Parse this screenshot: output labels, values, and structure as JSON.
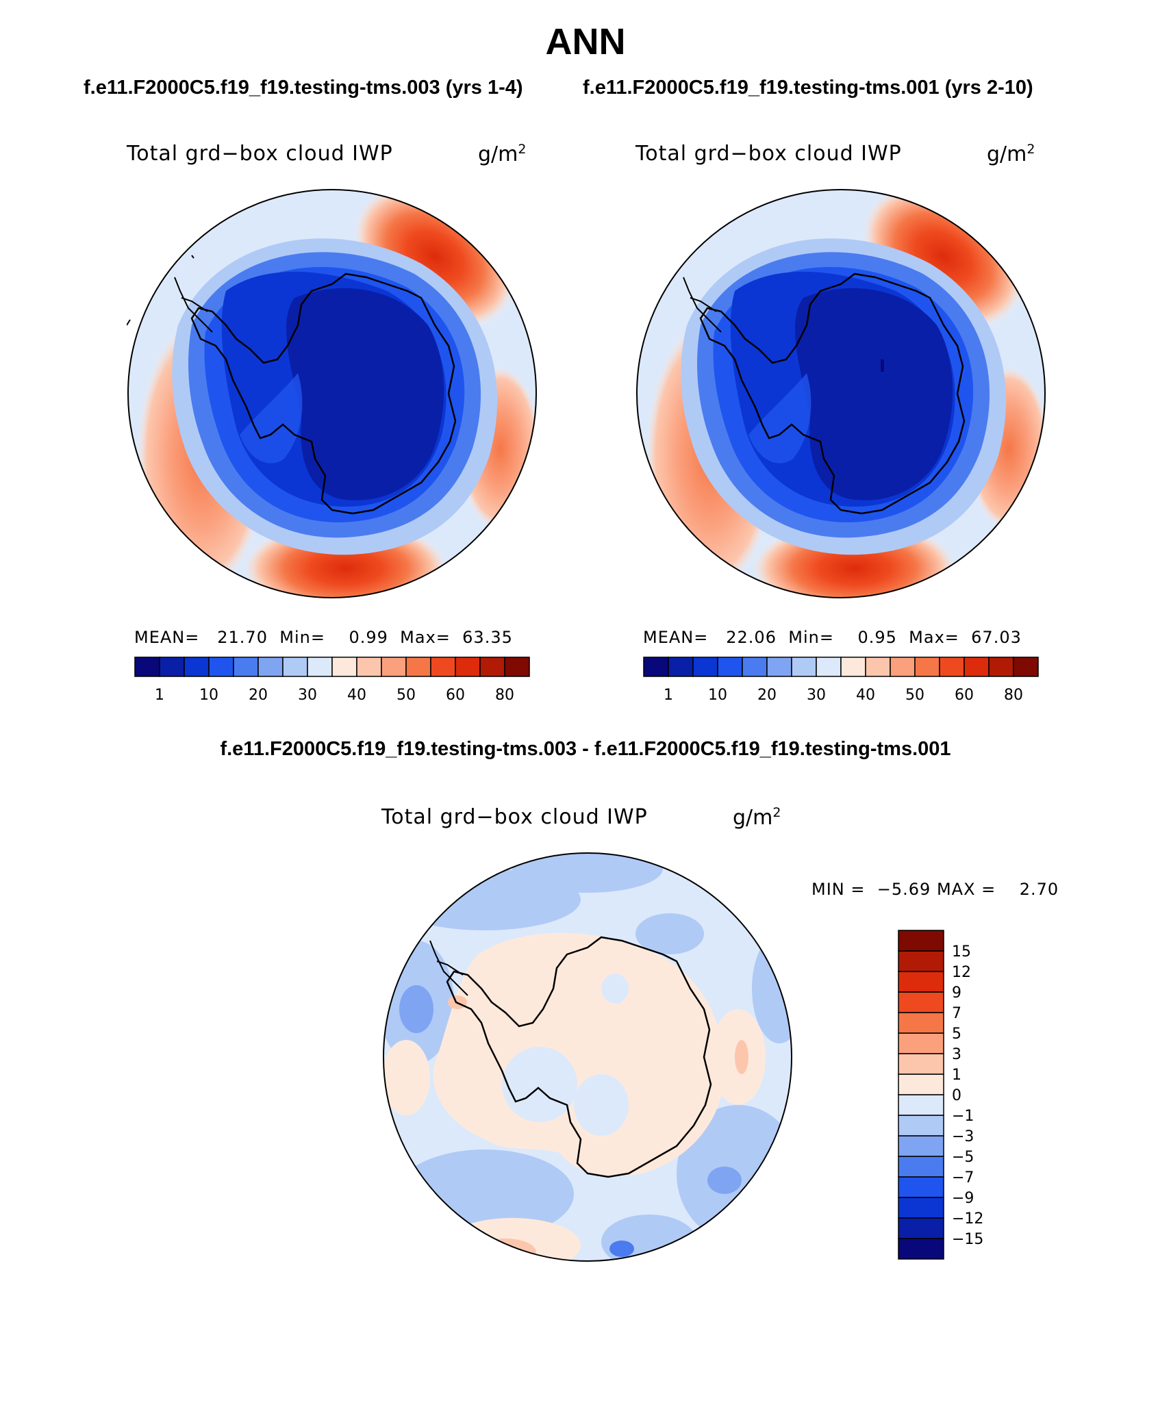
{
  "header": {
    "title": "ANN",
    "case_left": "f.e11.F2000C5.f19_f19.testing-tms.003 (yrs 1-4)",
    "case_right": "f.e11.F2000C5.f19_f19.testing-tms.001 (yrs 2-10)",
    "diff_title": "f.e11.F2000C5.f19_f19.testing-tms.003 - f.e11.F2000C5.f19_f19.testing-tms.001"
  },
  "panels": [
    {
      "variable": "Total grd−box cloud IWP",
      "units_base": "g/m",
      "units_exp": "2",
      "stats": {
        "mean_label": "MEAN=",
        "mean": "21.70",
        "min_label": "Min=",
        "min": "0.99",
        "max_label": "Max=",
        "max": "63.35"
      }
    },
    {
      "variable": "Total grd−box cloud IWP",
      "units_base": "g/m",
      "units_exp": "2",
      "stats": {
        "mean_label": "MEAN=",
        "mean": "22.06",
        "min_label": "Min=",
        "min": "0.95",
        "max_label": "Max=",
        "max": "67.03"
      }
    }
  ],
  "diff_panel": {
    "variable": "Total grd−box cloud IWP",
    "units_base": "g/m",
    "units_exp": "2",
    "min_label": "MIN =",
    "min": "−5.69",
    "max_label": "MAX =",
    "max": "2.70"
  },
  "colorbar_abs": {
    "colors": [
      "#08087a",
      "#0a1fa8",
      "#0b36d4",
      "#1f55ee",
      "#4a7cf0",
      "#7fa4f2",
      "#b0caf6",
      "#dce9fb",
      "#fde9dc",
      "#fcc6ad",
      "#fba07d",
      "#f57748",
      "#ef4a1f",
      "#dd2c0c",
      "#b11a05",
      "#7e0a02"
    ],
    "labels": [
      "1",
      "10",
      "20",
      "30",
      "40",
      "50",
      "60",
      "80"
    ]
  },
  "colorbar_diff": {
    "colors": [
      "#08087a",
      "#0a1fa8",
      "#0b36d4",
      "#1f55ee",
      "#4a7cf0",
      "#7fa4f2",
      "#b0caf6",
      "#dce9fb",
      "#fde9dc",
      "#fcc6ad",
      "#fba07d",
      "#f57748",
      "#ef4a1f",
      "#dd2c0c",
      "#b11a05",
      "#7e0a02"
    ],
    "labels": [
      "−15",
      "−12",
      "−9",
      "−7",
      "−5",
      "−3",
      "−1",
      "0",
      "1",
      "3",
      "5",
      "7",
      "9",
      "12",
      "15"
    ]
  }
}
